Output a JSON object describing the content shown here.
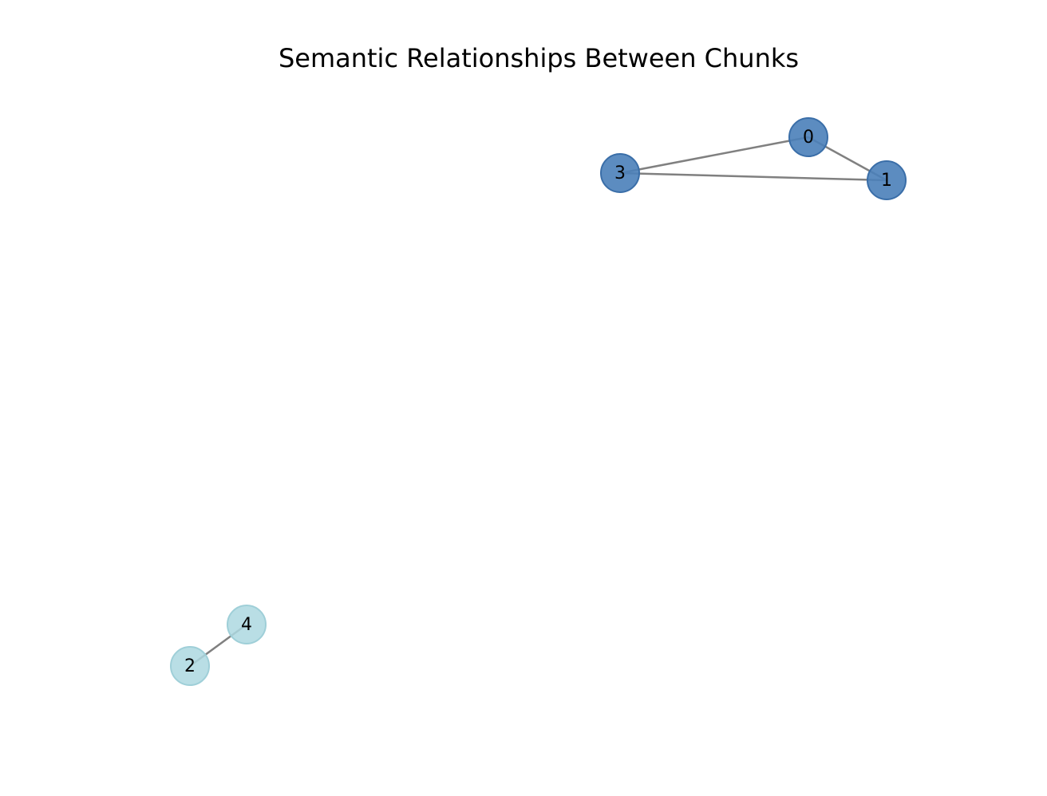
{
  "title": "Semantic Relationships Between Chunks",
  "colors": {
    "group_a": "#4a7fb9",
    "group_a_stroke": "#3a6ea8",
    "group_b": "#add8e0",
    "group_b_stroke": "#9fcfd8",
    "edge": "#808080"
  },
  "nodes": [
    {
      "id": "0",
      "label": "0",
      "group": "a"
    },
    {
      "id": "1",
      "label": "1",
      "group": "a"
    },
    {
      "id": "2",
      "label": "2",
      "group": "b"
    },
    {
      "id": "3",
      "label": "3",
      "group": "a"
    },
    {
      "id": "4",
      "label": "4",
      "group": "b"
    }
  ],
  "edges": [
    {
      "source": "0",
      "target": "1"
    },
    {
      "source": "0",
      "target": "3"
    },
    {
      "source": "3",
      "target": "1"
    },
    {
      "source": "2",
      "target": "4"
    }
  ]
}
